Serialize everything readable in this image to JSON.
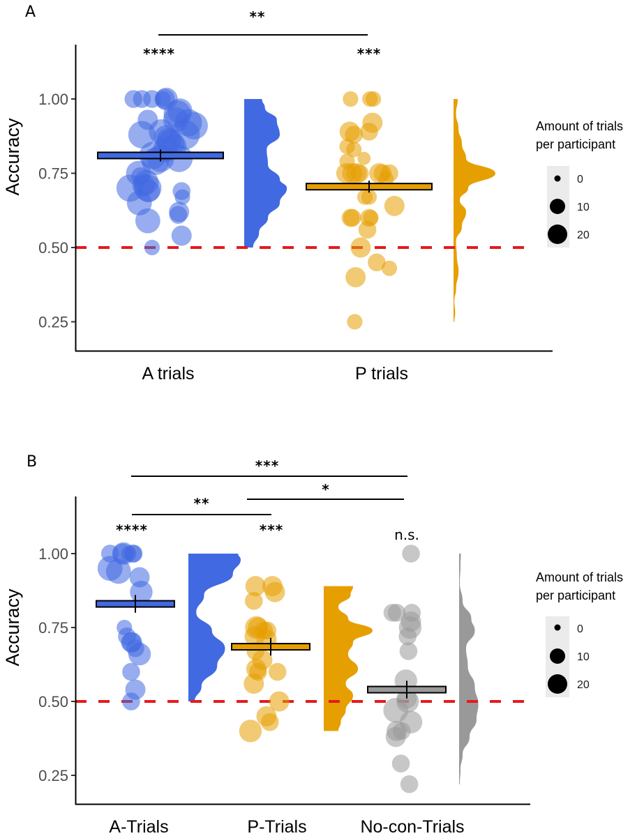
{
  "chart_data": [
    {
      "panel": "A",
      "type": "raincloud",
      "ylabel": "Accuracy",
      "ylim": [
        0.18,
        1.21
      ],
      "yticks": [
        0.25,
        0.5,
        0.75,
        1.0
      ],
      "ytick_labels": [
        "0.25",
        "0.50",
        "0.75",
        "1.00"
      ],
      "reference_line": {
        "y": 0.5,
        "style": "dashed",
        "color": "#e41a1c"
      },
      "categories": [
        "A trials",
        "P trials"
      ],
      "legend": {
        "title_line1": "Amount of trials",
        "title_line2": "per participant",
        "sizes": [
          0,
          10,
          20
        ],
        "labels": [
          "0",
          "10",
          "20"
        ],
        "placement": "right"
      },
      "groups": [
        {
          "name": "A trials",
          "color": "#4169e1",
          "mean": 0.81,
          "se": 0.02,
          "significance": "****",
          "violin_range": [
            0.5,
            1.0
          ],
          "density": [
            [
              0.5,
              0.15
            ],
            [
              0.55,
              0.25
            ],
            [
              0.6,
              0.4
            ],
            [
              0.65,
              0.6
            ],
            [
              0.7,
              0.72
            ],
            [
              0.73,
              0.6
            ],
            [
              0.78,
              0.4
            ],
            [
              0.83,
              0.38
            ],
            [
              0.88,
              0.6
            ],
            [
              0.93,
              0.55
            ],
            [
              0.97,
              0.35
            ],
            [
              1.0,
              0.3
            ]
          ],
          "points": [
            [
              1.0,
              -0.32,
              8
            ],
            [
              1.0,
              -0.22,
              8
            ],
            [
              1.0,
              -0.1,
              8
            ],
            [
              1.0,
              0.03,
              6
            ],
            [
              1.0,
              0.05,
              10
            ],
            [
              1.0,
              0.07,
              12
            ],
            [
              0.95,
              0.2,
              16
            ],
            [
              0.96,
              0.23,
              14
            ],
            [
              0.93,
              0.18,
              14
            ],
            [
              0.93,
              -0.15,
              10
            ],
            [
              0.92,
              0.33,
              16
            ],
            [
              0.91,
              0.4,
              16
            ],
            [
              0.89,
              0.01,
              14
            ],
            [
              0.88,
              -0.22,
              16
            ],
            [
              0.88,
              0.29,
              18
            ],
            [
              0.87,
              0.07,
              14
            ],
            [
              0.86,
              0.1,
              14
            ],
            [
              0.85,
              0.12,
              16
            ],
            [
              0.84,
              0.16,
              14
            ],
            [
              0.83,
              0.06,
              14
            ],
            [
              0.81,
              -0.09,
              16
            ],
            [
              0.8,
              0.0,
              16
            ],
            [
              0.8,
              0.22,
              16
            ],
            [
              0.79,
              -0.06,
              16
            ],
            [
              0.75,
              -0.26,
              14
            ],
            [
              0.74,
              -0.24,
              8
            ],
            [
              0.72,
              -0.17,
              14
            ],
            [
              0.71,
              -0.2,
              12
            ],
            [
              0.7,
              -0.36,
              16
            ],
            [
              0.7,
              -0.15,
              16
            ],
            [
              0.69,
              -0.14,
              12
            ],
            [
              0.69,
              0.25,
              8
            ],
            [
              0.67,
              0.26,
              6
            ],
            [
              0.65,
              -0.25,
              14
            ],
            [
              0.62,
              0.22,
              10
            ],
            [
              0.61,
              0.21,
              8
            ],
            [
              0.59,
              -0.15,
              14
            ],
            [
              0.54,
              0.25,
              10
            ],
            [
              0.5,
              -0.1,
              6
            ]
          ]
        },
        {
          "name": "P trials",
          "color": "#e69f00",
          "mean": 0.705,
          "se": 0.02,
          "significance": "***",
          "violin_range": [
            0.25,
            1.0
          ],
          "density": [
            [
              0.25,
              0.02
            ],
            [
              0.28,
              0.04
            ],
            [
              0.32,
              0.02
            ],
            [
              0.36,
              0.06
            ],
            [
              0.42,
              0.12
            ],
            [
              0.47,
              0.08
            ],
            [
              0.52,
              0.06
            ],
            [
              0.57,
              0.2
            ],
            [
              0.62,
              0.3
            ],
            [
              0.66,
              0.15
            ],
            [
              0.7,
              0.35
            ],
            [
              0.75,
              1.0
            ],
            [
              0.8,
              0.3
            ],
            [
              0.85,
              0.2
            ],
            [
              0.9,
              0.12
            ],
            [
              0.95,
              0.06
            ],
            [
              1.0,
              0.1
            ]
          ],
          "points": [
            [
              1.0,
              -0.22,
              6
            ],
            [
              1.0,
              0.01,
              6
            ],
            [
              1.0,
              0.05,
              6
            ],
            [
              0.92,
              0.04,
              10
            ],
            [
              0.89,
              0.0,
              8
            ],
            [
              0.89,
              -0.23,
              10
            ],
            [
              0.88,
              -0.18,
              8
            ],
            [
              0.84,
              -0.26,
              6
            ],
            [
              0.83,
              -0.18,
              6
            ],
            [
              0.8,
              -0.06,
              4
            ],
            [
              0.79,
              -0.26,
              6
            ],
            [
              0.75,
              -0.27,
              10
            ],
            [
              0.75,
              -0.2,
              10
            ],
            [
              0.75,
              -0.15,
              10
            ],
            [
              0.75,
              -0.11,
              8
            ],
            [
              0.75,
              0.12,
              10
            ],
            [
              0.75,
              0.16,
              8
            ],
            [
              0.75,
              0.24,
              8
            ],
            [
              0.73,
              0.2,
              6
            ],
            [
              0.67,
              -0.05,
              6
            ],
            [
              0.67,
              0.0,
              6
            ],
            [
              0.64,
              0.3,
              10
            ],
            [
              0.6,
              -0.22,
              8
            ],
            [
              0.6,
              -0.2,
              8
            ],
            [
              0.6,
              0.0,
              8
            ],
            [
              0.6,
              0.02,
              6
            ],
            [
              0.56,
              -0.02,
              8
            ],
            [
              0.5,
              -0.1,
              10
            ],
            [
              0.45,
              0.09,
              8
            ],
            [
              0.43,
              0.24,
              6
            ],
            [
              0.4,
              -0.16,
              10
            ],
            [
              0.25,
              -0.17,
              6
            ]
          ]
        }
      ],
      "comparisons": [
        {
          "from": "A trials",
          "to": "P trials",
          "label": "**"
        }
      ]
    },
    {
      "panel": "B",
      "type": "raincloud",
      "ylabel": "Accuracy",
      "ylim": [
        0.18,
        1.21
      ],
      "yticks": [
        0.25,
        0.5,
        0.75,
        1.0
      ],
      "ytick_labels": [
        "0.25",
        "0.50",
        "0.75",
        "1.00"
      ],
      "reference_line": {
        "y": 0.5,
        "style": "dashed",
        "color": "#e41a1c"
      },
      "categories": [
        "A-Trials",
        "P-Trials",
        "No-con-Trials"
      ],
      "legend": {
        "title_line1": "Amount of trials",
        "title_line2": "per participant",
        "sizes": [
          0,
          10,
          20
        ],
        "labels": [
          "0",
          "10",
          "20"
        ],
        "placement": "right"
      },
      "groups": [
        {
          "name": "A-Trials",
          "color": "#4169e1",
          "mean": 0.83,
          "se": 0.03,
          "significance": "****",
          "violin_range": [
            0.5,
            1.0
          ],
          "density": [
            [
              0.5,
              0.12
            ],
            [
              0.55,
              0.25
            ],
            [
              0.62,
              0.55
            ],
            [
              0.68,
              0.7
            ],
            [
              0.74,
              0.45
            ],
            [
              0.8,
              0.15
            ],
            [
              0.86,
              0.3
            ],
            [
              0.93,
              0.85
            ],
            [
              0.98,
              1.0
            ],
            [
              1.0,
              0.95
            ]
          ],
          "points": [
            [
              1.0,
              -0.3,
              8
            ],
            [
              1.0,
              -0.15,
              10
            ],
            [
              1.0,
              -0.14,
              12
            ],
            [
              1.0,
              -0.08,
              6
            ],
            [
              1.0,
              -0.03,
              8
            ],
            [
              1.0,
              -0.02,
              8
            ],
            [
              0.95,
              -0.3,
              14
            ],
            [
              0.94,
              -0.2,
              14
            ],
            [
              0.92,
              0.05,
              10
            ],
            [
              0.87,
              0.07,
              12
            ],
            [
              0.75,
              -0.13,
              6
            ],
            [
              0.72,
              -0.1,
              8
            ],
            [
              0.7,
              -0.05,
              10
            ],
            [
              0.7,
              -0.04,
              10
            ],
            [
              0.68,
              0.0,
              8
            ],
            [
              0.66,
              0.05,
              12
            ],
            [
              0.6,
              -0.05,
              8
            ],
            [
              0.54,
              -0.0,
              10
            ],
            [
              0.5,
              -0.05,
              8
            ]
          ]
        },
        {
          "name": "P-Trials",
          "color": "#e69f00",
          "mean": 0.685,
          "se": 0.03,
          "significance": "***",
          "violin_range": [
            0.4,
            0.89
          ],
          "density": [
            [
              0.4,
              0.3
            ],
            [
              0.43,
              0.35
            ],
            [
              0.47,
              0.45
            ],
            [
              0.52,
              0.6
            ],
            [
              0.56,
              0.45
            ],
            [
              0.61,
              0.7
            ],
            [
              0.66,
              0.5
            ],
            [
              0.7,
              0.6
            ],
            [
              0.74,
              1.0
            ],
            [
              0.78,
              0.5
            ],
            [
              0.82,
              0.3
            ],
            [
              0.86,
              0.55
            ],
            [
              0.89,
              0.6
            ]
          ],
          "points": [
            [
              0.89,
              -0.18,
              10
            ],
            [
              0.89,
              0.02,
              10
            ],
            [
              0.87,
              0.05,
              10
            ],
            [
              0.84,
              -0.2,
              8
            ],
            [
              0.75,
              -0.17,
              12
            ],
            [
              0.75,
              -0.15,
              10
            ],
            [
              0.74,
              -0.08,
              8
            ],
            [
              0.74,
              -0.04,
              8
            ],
            [
              0.72,
              -0.19,
              10
            ],
            [
              0.71,
              -0.05,
              10
            ],
            [
              0.67,
              -0.18,
              8
            ],
            [
              0.64,
              -0.1,
              10
            ],
            [
              0.61,
              -0.17,
              10
            ],
            [
              0.6,
              -0.15,
              8
            ],
            [
              0.6,
              0.08,
              8
            ],
            [
              0.56,
              -0.2,
              10
            ],
            [
              0.5,
              0.1,
              10
            ],
            [
              0.45,
              -0.05,
              10
            ],
            [
              0.43,
              -0.01,
              8
            ],
            [
              0.4,
              -0.24,
              12
            ]
          ]
        },
        {
          "name": "No-con-Trials",
          "color": "#999999",
          "mean": 0.54,
          "se": 0.03,
          "significance": "n.s.",
          "violin_range": [
            0.22,
            1.0
          ],
          "density": [
            [
              0.22,
              0.02
            ],
            [
              0.27,
              0.04
            ],
            [
              0.32,
              0.1
            ],
            [
              0.38,
              0.3
            ],
            [
              0.44,
              0.5
            ],
            [
              0.49,
              0.55
            ],
            [
              0.55,
              0.45
            ],
            [
              0.62,
              0.25
            ],
            [
              0.68,
              0.2
            ],
            [
              0.74,
              0.45
            ],
            [
              0.78,
              0.35
            ],
            [
              0.84,
              0.1
            ],
            [
              0.9,
              0.02
            ],
            [
              0.96,
              0.04
            ],
            [
              1.0,
              0.05
            ]
          ],
          "points": [
            [
              1.0,
              0.05,
              8
            ],
            [
              0.8,
              -0.17,
              8
            ],
            [
              0.8,
              -0.12,
              8
            ],
            [
              0.8,
              0.06,
              8
            ],
            [
              0.77,
              0.05,
              10
            ],
            [
              0.75,
              0.04,
              12
            ],
            [
              0.72,
              0.01,
              8
            ],
            [
              0.67,
              0.02,
              8
            ],
            [
              0.57,
              -0.01,
              12
            ],
            [
              0.51,
              0.0,
              10
            ],
            [
              0.5,
              0.01,
              12
            ],
            [
              0.47,
              -0.13,
              14
            ],
            [
              0.43,
              0.05,
              12
            ],
            [
              0.4,
              -0.12,
              10
            ],
            [
              0.4,
              -0.06,
              8
            ],
            [
              0.38,
              -0.13,
              10
            ],
            [
              0.29,
              -0.07,
              8
            ],
            [
              0.22,
              0.03,
              8
            ]
          ]
        }
      ],
      "comparisons": [
        {
          "from": "A-Trials",
          "to": "P-Trials",
          "label": "**"
        },
        {
          "from": "P-Trials",
          "to": "No-con-Trials",
          "label": "*"
        },
        {
          "from": "A-Trials",
          "to": "No-con-Trials",
          "label": "***"
        }
      ]
    }
  ]
}
